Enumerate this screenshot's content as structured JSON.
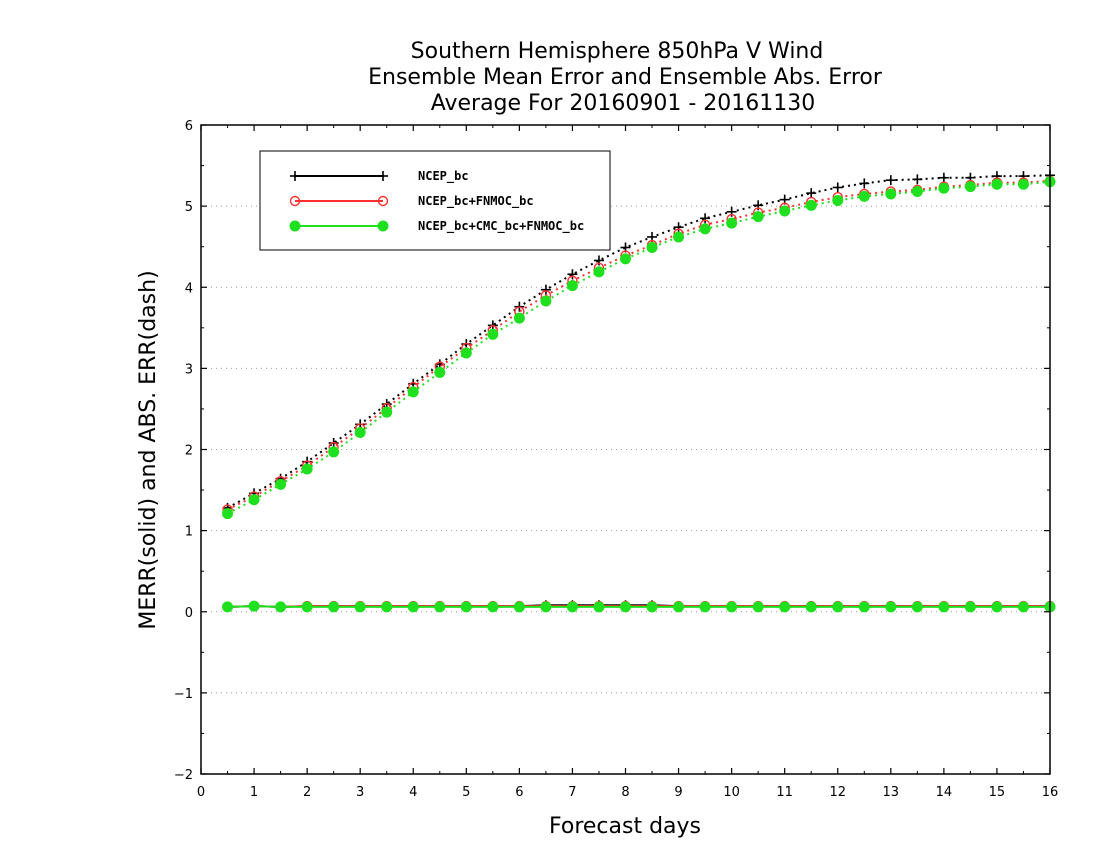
{
  "chart_data": {
    "type": "line",
    "title_lines": [
      "Southern Hemisphere 850hPa V Wind",
      "Ensemble Mean Error and Ensemble Abs. Error",
      "Average For 20160901 - 20161130"
    ],
    "xlabel": "Forecast days",
    "ylabel": "MERR(solid) and ABS. ERR(dash)",
    "xlim": [
      0,
      16
    ],
    "ylim": [
      -2,
      6
    ],
    "xticks": [
      "0",
      "1",
      "2",
      "3",
      "4",
      "5",
      "6",
      "7",
      "8",
      "9",
      "10",
      "11",
      "12",
      "13",
      "14",
      "15",
      "16"
    ],
    "yticks": [
      "−2",
      "−1",
      "0",
      "1",
      "2",
      "3",
      "4",
      "5",
      "6"
    ],
    "grid": "horizontal dotted",
    "legend_position": "top-left",
    "x": [
      0.5,
      1,
      1.5,
      2,
      2.5,
      3,
      3.5,
      4,
      4.5,
      5,
      5.5,
      6,
      6.5,
      7,
      7.5,
      8,
      8.5,
      9,
      9.5,
      10,
      10.5,
      11,
      11.5,
      12,
      12.5,
      13,
      13.5,
      14,
      14.5,
      15,
      15.5,
      16
    ],
    "series": [
      {
        "name": "NCEP_bc",
        "color": "#000000",
        "marker": "plus",
        "merr": [
          0.06,
          0.07,
          0.06,
          0.07,
          0.07,
          0.07,
          0.07,
          0.07,
          0.07,
          0.07,
          0.07,
          0.07,
          0.08,
          0.08,
          0.08,
          0.08,
          0.08,
          0.07,
          0.07,
          0.07,
          0.07,
          0.07,
          0.07,
          0.07,
          0.07,
          0.07,
          0.07,
          0.07,
          0.07,
          0.07,
          0.07,
          0.07
        ],
        "abs_err": [
          1.28,
          1.46,
          1.64,
          1.85,
          2.08,
          2.31,
          2.56,
          2.81,
          3.05,
          3.3,
          3.53,
          3.76,
          3.97,
          4.16,
          4.33,
          4.49,
          4.62,
          4.74,
          4.85,
          4.93,
          5.01,
          5.08,
          5.16,
          5.23,
          5.28,
          5.32,
          5.33,
          5.35,
          5.35,
          5.37,
          5.37,
          5.38
        ]
      },
      {
        "name": "NCEP_bc+FNMOC_bc",
        "color": "#ff3030",
        "marker": "open-circle",
        "merr": [
          0.06,
          0.07,
          0.06,
          0.07,
          0.07,
          0.07,
          0.07,
          0.07,
          0.07,
          0.07,
          0.07,
          0.07,
          0.07,
          0.07,
          0.07,
          0.07,
          0.07,
          0.07,
          0.07,
          0.07,
          0.07,
          0.07,
          0.07,
          0.07,
          0.07,
          0.07,
          0.07,
          0.07,
          0.07,
          0.07,
          0.07,
          0.07
        ],
        "abs_err": [
          1.26,
          1.42,
          1.61,
          1.8,
          2.03,
          2.26,
          2.51,
          2.77,
          3.02,
          3.25,
          3.47,
          3.7,
          3.9,
          4.08,
          4.24,
          4.39,
          4.52,
          4.66,
          4.77,
          4.84,
          4.92,
          4.98,
          5.05,
          5.11,
          5.15,
          5.18,
          5.2,
          5.24,
          5.26,
          5.29,
          5.29,
          5.31
        ]
      },
      {
        "name": "NCEP_bc+CMC_bc+FNMOC_bc",
        "color": "#1ee01e",
        "marker": "filled-circle",
        "merr": [
          0.06,
          0.07,
          0.06,
          0.06,
          0.06,
          0.06,
          0.06,
          0.06,
          0.06,
          0.06,
          0.06,
          0.06,
          0.06,
          0.06,
          0.06,
          0.06,
          0.06,
          0.06,
          0.06,
          0.06,
          0.06,
          0.06,
          0.06,
          0.06,
          0.06,
          0.06,
          0.06,
          0.06,
          0.06,
          0.06,
          0.06,
          0.06
        ],
        "abs_err": [
          1.21,
          1.38,
          1.57,
          1.76,
          1.97,
          2.21,
          2.46,
          2.71,
          2.95,
          3.19,
          3.42,
          3.62,
          3.83,
          4.02,
          4.19,
          4.35,
          4.49,
          4.62,
          4.72,
          4.79,
          4.87,
          4.94,
          5.01,
          5.07,
          5.12,
          5.15,
          5.18,
          5.22,
          5.24,
          5.27,
          5.27,
          5.3
        ]
      }
    ]
  }
}
